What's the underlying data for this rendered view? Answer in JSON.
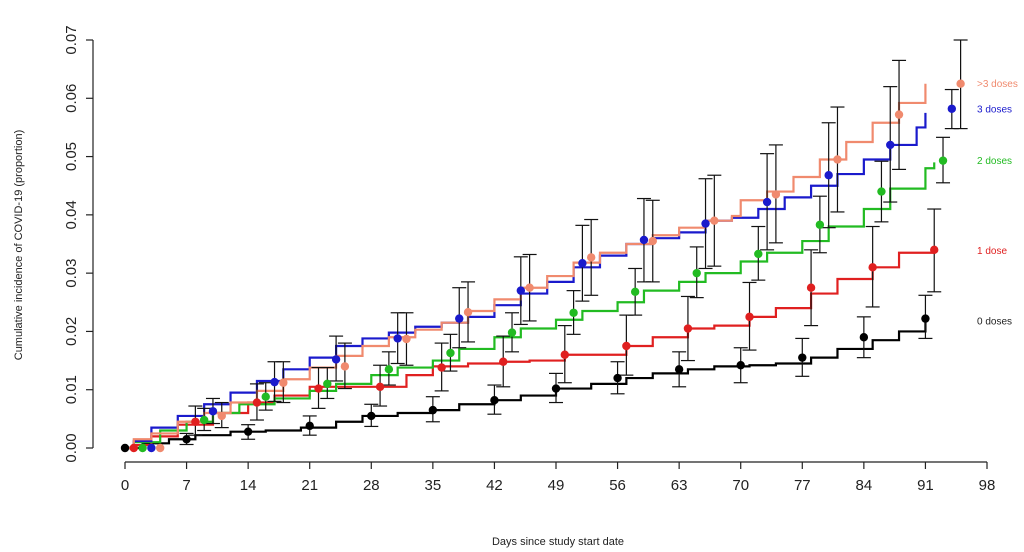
{
  "chart_data": {
    "type": "line",
    "xlabel": "Days since study start date",
    "ylabel": "Cumulative incidence of COVID-19 (proportion)",
    "xlim": [
      0,
      98
    ],
    "ylim": [
      0,
      0.07
    ],
    "x_ticks": [
      "0",
      "7",
      "14",
      "21",
      "28",
      "35",
      "42",
      "49",
      "56",
      "63",
      "70",
      "77",
      "84",
      "91",
      "98"
    ],
    "y_ticks": [
      "0.00",
      "0.01",
      "0.02",
      "0.03",
      "0.04",
      "0.05",
      "0.06",
      "0.07"
    ],
    "grid": false,
    "legend_placement": "right, labels next to series ends",
    "series": [
      {
        "name": "0 doses",
        "color": "#000000",
        "step_x": [
          0,
          2,
          5,
          8,
          12,
          16,
          20,
          24,
          27,
          31,
          35,
          38,
          42,
          45,
          49,
          53,
          57,
          60,
          64,
          67,
          71,
          74,
          78,
          81,
          85,
          88,
          91
        ],
        "step_y": [
          0,
          0.0008,
          0.0015,
          0.0022,
          0.0028,
          0.003,
          0.0035,
          0.0045,
          0.0055,
          0.006,
          0.0065,
          0.0075,
          0.0082,
          0.009,
          0.0102,
          0.011,
          0.012,
          0.0128,
          0.0135,
          0.014,
          0.0142,
          0.0145,
          0.0155,
          0.017,
          0.0185,
          0.02,
          0.0218
        ],
        "points": [
          {
            "x": 0,
            "y": 0,
            "low": 0,
            "high": 0
          },
          {
            "x": 7,
            "y": 0.0015,
            "low": 0.0006,
            "high": 0.0025
          },
          {
            "x": 14,
            "y": 0.0028,
            "low": 0.0015,
            "high": 0.004
          },
          {
            "x": 21,
            "y": 0.0038,
            "low": 0.0022,
            "high": 0.0055
          },
          {
            "x": 28,
            "y": 0.0055,
            "low": 0.0037,
            "high": 0.0075
          },
          {
            "x": 35,
            "y": 0.0065,
            "low": 0.0045,
            "high": 0.0088
          },
          {
            "x": 42,
            "y": 0.0082,
            "low": 0.0058,
            "high": 0.0108
          },
          {
            "x": 49,
            "y": 0.0102,
            "low": 0.0078,
            "high": 0.0128
          },
          {
            "x": 56,
            "y": 0.012,
            "low": 0.0093,
            "high": 0.0148
          },
          {
            "x": 63,
            "y": 0.0135,
            "low": 0.0105,
            "high": 0.0165
          },
          {
            "x": 70,
            "y": 0.0142,
            "low": 0.0112,
            "high": 0.0172
          },
          {
            "x": 77,
            "y": 0.0155,
            "low": 0.0123,
            "high": 0.0188
          },
          {
            "x": 84,
            "y": 0.019,
            "low": 0.0155,
            "high": 0.0225
          },
          {
            "x": 91,
            "y": 0.0222,
            "low": 0.0188,
            "high": 0.0262
          }
        ]
      },
      {
        "name": "1 dose",
        "color": "#e02020",
        "step_x": [
          0,
          1,
          3,
          6,
          10,
          14,
          17,
          21,
          26,
          29,
          32,
          35,
          39,
          43,
          46,
          50,
          53,
          57,
          60,
          64,
          67,
          71,
          74,
          78,
          81,
          85,
          88,
          92
        ],
        "step_y": [
          0,
          0.0005,
          0.002,
          0.004,
          0.006,
          0.0078,
          0.009,
          0.0105,
          0.0105,
          0.0105,
          0.0125,
          0.014,
          0.0145,
          0.0148,
          0.015,
          0.016,
          0.016,
          0.0175,
          0.019,
          0.0205,
          0.021,
          0.0225,
          0.024,
          0.0265,
          0.029,
          0.031,
          0.0335,
          0.0338
        ],
        "points": [
          {
            "x": 1,
            "y": 0,
            "low": 0,
            "high": 0
          },
          {
            "x": 8,
            "y": 0.0045,
            "low": 0.0022,
            "high": 0.0072
          },
          {
            "x": 15,
            "y": 0.0078,
            "low": 0.0048,
            "high": 0.011
          },
          {
            "x": 22,
            "y": 0.0102,
            "low": 0.0068,
            "high": 0.0138
          },
          {
            "x": 29,
            "y": 0.0105,
            "low": 0.0072,
            "high": 0.0142
          },
          {
            "x": 36,
            "y": 0.0138,
            "low": 0.0098,
            "high": 0.018
          },
          {
            "x": 43,
            "y": 0.0148,
            "low": 0.0105,
            "high": 0.0192
          },
          {
            "x": 50,
            "y": 0.016,
            "low": 0.0112,
            "high": 0.021
          },
          {
            "x": 57,
            "y": 0.0175,
            "low": 0.0125,
            "high": 0.0228
          },
          {
            "x": 64,
            "y": 0.0205,
            "low": 0.015,
            "high": 0.026
          },
          {
            "x": 71,
            "y": 0.0225,
            "low": 0.0168,
            "high": 0.0284
          },
          {
            "x": 78,
            "y": 0.0275,
            "low": 0.021,
            "high": 0.034
          },
          {
            "x": 85,
            "y": 0.031,
            "low": 0.0242,
            "high": 0.038
          },
          {
            "x": 92,
            "y": 0.034,
            "low": 0.0268,
            "high": 0.041
          }
        ]
      },
      {
        "name": "2 doses",
        "color": "#22bb22",
        "step_x": [
          0,
          1,
          4,
          7,
          10,
          13,
          17,
          21,
          24,
          28,
          31,
          35,
          38,
          42,
          45,
          49,
          52,
          56,
          59,
          63,
          66,
          70,
          73,
          77,
          80,
          84,
          87,
          91,
          92
        ],
        "step_y": [
          0,
          0.001,
          0.003,
          0.0045,
          0.006,
          0.0075,
          0.0085,
          0.0098,
          0.011,
          0.0125,
          0.0138,
          0.015,
          0.017,
          0.019,
          0.0205,
          0.022,
          0.0235,
          0.025,
          0.027,
          0.0285,
          0.03,
          0.032,
          0.0335,
          0.0355,
          0.038,
          0.041,
          0.0445,
          0.048,
          0.049
        ],
        "points": [
          {
            "x": 2,
            "y": 0,
            "low": 0,
            "high": 0
          },
          {
            "x": 9,
            "y": 0.0048,
            "low": 0.003,
            "high": 0.0068
          },
          {
            "x": 16,
            "y": 0.0088,
            "low": 0.0065,
            "high": 0.0112
          },
          {
            "x": 23,
            "y": 0.011,
            "low": 0.0085,
            "high": 0.0138
          },
          {
            "x": 30,
            "y": 0.0135,
            "low": 0.0108,
            "high": 0.0165
          },
          {
            "x": 37,
            "y": 0.0163,
            "low": 0.0132,
            "high": 0.0195
          },
          {
            "x": 44,
            "y": 0.0198,
            "low": 0.0165,
            "high": 0.0232
          },
          {
            "x": 51,
            "y": 0.0232,
            "low": 0.0195,
            "high": 0.027
          },
          {
            "x": 58,
            "y": 0.0268,
            "low": 0.0228,
            "high": 0.0308
          },
          {
            "x": 65,
            "y": 0.03,
            "low": 0.0258,
            "high": 0.0345
          },
          {
            "x": 72,
            "y": 0.0333,
            "low": 0.0288,
            "high": 0.038
          },
          {
            "x": 79,
            "y": 0.0383,
            "low": 0.0335,
            "high": 0.0432
          },
          {
            "x": 86,
            "y": 0.044,
            "low": 0.0388,
            "high": 0.0492
          },
          {
            "x": 93,
            "y": 0.0493,
            "low": 0.0455,
            "high": 0.0533
          }
        ]
      },
      {
        "name": "3 doses",
        "color": "#1a1acc",
        "step_x": [
          0,
          1,
          3,
          6,
          9,
          12,
          15,
          18,
          21,
          24,
          27,
          30,
          33,
          36,
          39,
          42,
          45,
          48,
          51,
          54,
          57,
          60,
          63,
          66,
          69,
          72,
          75,
          78,
          81,
          84,
          87,
          90,
          91
        ],
        "step_y": [
          0,
          0.0012,
          0.0035,
          0.0055,
          0.0075,
          0.0095,
          0.0115,
          0.0135,
          0.0155,
          0.0175,
          0.0188,
          0.0198,
          0.0208,
          0.0215,
          0.0225,
          0.0245,
          0.0265,
          0.0285,
          0.031,
          0.033,
          0.035,
          0.036,
          0.037,
          0.039,
          0.0395,
          0.041,
          0.043,
          0.045,
          0.047,
          0.0495,
          0.052,
          0.055,
          0.0575
        ],
        "points": [
          {
            "x": 3,
            "y": 0,
            "low": 0,
            "high": 0
          },
          {
            "x": 10,
            "y": 0.0063,
            "low": 0.0042,
            "high": 0.0085
          },
          {
            "x": 17,
            "y": 0.0113,
            "low": 0.008,
            "high": 0.0148
          },
          {
            "x": 24,
            "y": 0.0152,
            "low": 0.0115,
            "high": 0.0192
          },
          {
            "x": 31,
            "y": 0.0188,
            "low": 0.0145,
            "high": 0.0232
          },
          {
            "x": 38,
            "y": 0.0222,
            "low": 0.0172,
            "high": 0.0275
          },
          {
            "x": 45,
            "y": 0.027,
            "low": 0.0212,
            "high": 0.0328
          },
          {
            "x": 52,
            "y": 0.0317,
            "low": 0.0252,
            "high": 0.0382
          },
          {
            "x": 59,
            "y": 0.0357,
            "low": 0.0285,
            "high": 0.0428
          },
          {
            "x": 66,
            "y": 0.0385,
            "low": 0.0308,
            "high": 0.0462
          },
          {
            "x": 73,
            "y": 0.0422,
            "low": 0.034,
            "high": 0.0505
          },
          {
            "x": 80,
            "y": 0.0468,
            "low": 0.0378,
            "high": 0.0558
          },
          {
            "x": 87,
            "y": 0.052,
            "low": 0.0422,
            "high": 0.062
          },
          {
            "x": 94,
            "y": 0.0582,
            "low": 0.0548,
            "high": 0.0615
          }
        ]
      },
      {
        "name": ">3 doses",
        "color": "#f08a6e",
        "step_x": [
          0,
          1,
          3,
          6,
          9,
          12,
          15,
          18,
          21,
          24,
          27,
          30,
          33,
          36,
          39,
          42,
          45,
          48,
          51,
          54,
          57,
          60,
          63,
          66,
          69,
          70,
          73,
          76,
          79,
          82,
          85,
          88,
          91
        ],
        "step_y": [
          0,
          0.0015,
          0.0025,
          0.0045,
          0.006,
          0.0078,
          0.0098,
          0.0118,
          0.0138,
          0.0158,
          0.0175,
          0.019,
          0.0203,
          0.0215,
          0.0235,
          0.0255,
          0.0275,
          0.0295,
          0.0318,
          0.0335,
          0.035,
          0.0365,
          0.0378,
          0.039,
          0.0398,
          0.0425,
          0.044,
          0.0465,
          0.0495,
          0.0525,
          0.0558,
          0.0592,
          0.0625
        ],
        "points": [
          {
            "x": 4,
            "y": 0,
            "low": 0,
            "high": 0
          },
          {
            "x": 11,
            "y": 0.0055,
            "low": 0.0035,
            "high": 0.0078
          },
          {
            "x": 18,
            "y": 0.0112,
            "low": 0.0078,
            "high": 0.0148
          },
          {
            "x": 25,
            "y": 0.014,
            "low": 0.0102,
            "high": 0.018
          },
          {
            "x": 32,
            "y": 0.0187,
            "low": 0.0142,
            "high": 0.0232
          },
          {
            "x": 39,
            "y": 0.0233,
            "low": 0.0182,
            "high": 0.0285
          },
          {
            "x": 46,
            "y": 0.0275,
            "low": 0.0218,
            "high": 0.0332
          },
          {
            "x": 53,
            "y": 0.0327,
            "low": 0.0262,
            "high": 0.0392
          },
          {
            "x": 60,
            "y": 0.0355,
            "low": 0.0285,
            "high": 0.0425
          },
          {
            "x": 67,
            "y": 0.039,
            "low": 0.0312,
            "high": 0.0468
          },
          {
            "x": 74,
            "y": 0.0435,
            "low": 0.0352,
            "high": 0.052
          },
          {
            "x": 81,
            "y": 0.0495,
            "low": 0.0405,
            "high": 0.0585
          },
          {
            "x": 88,
            "y": 0.0572,
            "low": 0.0478,
            "high": 0.0665
          },
          {
            "x": 95,
            "y": 0.0625,
            "low": 0.0548,
            "high": 0.07
          }
        ]
      }
    ]
  }
}
